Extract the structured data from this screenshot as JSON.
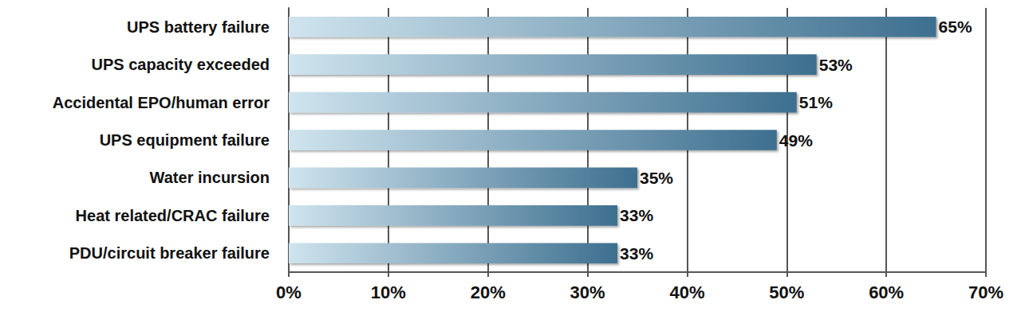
{
  "chart_data": {
    "type": "bar",
    "orientation": "horizontal",
    "categories": [
      "UPS battery failure",
      "UPS capacity exceeded",
      "Accidental EPO/human error",
      "UPS equipment failure",
      "Water incursion",
      "Heat related/CRAC failure",
      "PDU/circuit breaker failure"
    ],
    "values": [
      65,
      53,
      51,
      49,
      35,
      33,
      33
    ],
    "value_labels": [
      "65%",
      "53%",
      "51%",
      "49%",
      "35%",
      "33%",
      "33%"
    ],
    "color": "#3d6f8f",
    "xlim": [
      0,
      70
    ],
    "xticks": [
      {
        "value": 0,
        "label": "0%"
      },
      {
        "value": 10,
        "label": "10%"
      },
      {
        "value": 20,
        "label": "20%"
      },
      {
        "value": 30,
        "label": "30%"
      },
      {
        "value": 40,
        "label": "40%"
      },
      {
        "value": 50,
        "label": "50%"
      },
      {
        "value": 60,
        "label": "60%"
      },
      {
        "value": 70,
        "label": "70%"
      }
    ],
    "grid": true,
    "data_labels": true
  }
}
